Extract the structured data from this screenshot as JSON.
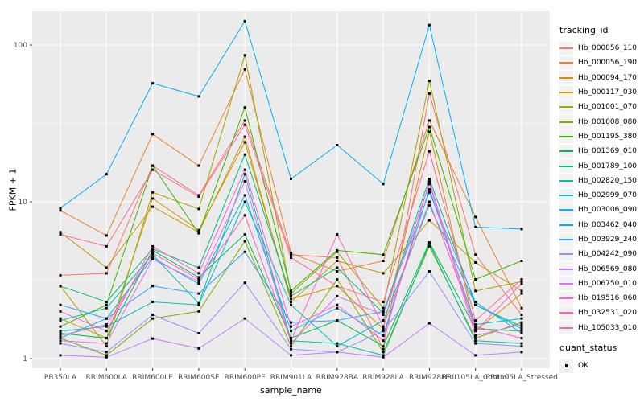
{
  "chart_data": {
    "type": "line",
    "title": "",
    "xlabel": "sample_name",
    "ylabel": "FPKM + 1",
    "y_scale": "log10",
    "ylim": [
      1,
      200
    ],
    "y_ticks": [
      1,
      10,
      100
    ],
    "y_tick_labels": [
      "1",
      "10",
      "100"
    ],
    "y_minor_ticks": [
      3.1623,
      31.623
    ],
    "grid": true,
    "panel_bg": "#EBEBEB",
    "grid_color": "#FFFFFF",
    "tick_label_color": "#4D4D4D",
    "point_marker": "black-square",
    "categories": [
      "PB350LA",
      "RRIM600LA",
      "RRIM600LE",
      "RRIM600SE",
      "RRIM600PE",
      "RRIM901LA",
      "RRIM928BA",
      "RRIM928LA",
      "RRIM928LE",
      "RRII105LA_Control",
      "RRII105LA_Stressed"
    ],
    "legend": {
      "title": "tracking_id",
      "position": "right"
    },
    "quant_status": {
      "title": "quant_status",
      "items": [
        {
          "label": "OK",
          "marker": "black-square"
        }
      ]
    },
    "series": [
      {
        "name": "Hb_000056_110",
        "color": "#F8766D",
        "values": [
          3.4,
          3.5,
          17,
          11,
          33,
          4.6,
          4.4,
          1.15,
          49,
          4.6,
          1.9
        ]
      },
      {
        "name": "Hb_000056_190",
        "color": "#EA8331",
        "values": [
          8.8,
          6.1,
          27,
          17,
          70,
          4.7,
          3.6,
          4.2,
          33,
          8.0,
          2.1
        ]
      },
      {
        "name": "Hb_000094_170",
        "color": "#D89000",
        "values": [
          1.8,
          1.35,
          10.5,
          6.6,
          24,
          2.4,
          2.9,
          1.55,
          28,
          1.5,
          2.6
        ]
      },
      {
        "name": "Hb_000117_030",
        "color": "#C09B00",
        "values": [
          6.4,
          3.8,
          9.3,
          6.4,
          26,
          2.3,
          4.2,
          3.5,
          7.6,
          4.1,
          2.7
        ]
      },
      {
        "name": "Hb_001001_070",
        "color": "#A3A500",
        "values": [
          2.9,
          1.2,
          11.5,
          9.0,
          86,
          2.6,
          4.8,
          2.1,
          59,
          2.7,
          3.1
        ]
      },
      {
        "name": "Hb_001008_080",
        "color": "#7CAE00",
        "values": [
          1.35,
          1.05,
          1.8,
          2.0,
          5.6,
          1.2,
          3.2,
          1.1,
          5.2,
          1.35,
          1.7
        ]
      },
      {
        "name": "Hb_001195_380",
        "color": "#39B600",
        "values": [
          1.6,
          2.2,
          17,
          6.3,
          40,
          2.7,
          4.9,
          4.6,
          30,
          3.2,
          4.2
        ]
      },
      {
        "name": "Hb_001369_010",
        "color": "#00BB4E",
        "values": [
          1.45,
          1.35,
          4.9,
          3.3,
          6.2,
          1.35,
          1.75,
          1.2,
          5.5,
          1.55,
          1.5
        ]
      },
      {
        "name": "Hb_001789_100",
        "color": "#00BF7D",
        "values": [
          2.9,
          2.3,
          5.0,
          3.8,
          20,
          2.5,
          3.8,
          1.95,
          14,
          2.2,
          1.6
        ]
      },
      {
        "name": "Hb_002820_150",
        "color": "#00C1A3",
        "values": [
          1.75,
          2.1,
          4.6,
          2.25,
          15,
          1.3,
          1.25,
          1.05,
          5.4,
          1.3,
          1.25
        ]
      },
      {
        "name": "Hb_002999_070",
        "color": "#00BFC4",
        "values": [
          1.5,
          1.6,
          2.3,
          2.2,
          10,
          2.2,
          1.2,
          1.75,
          9.5,
          2.2,
          1.55
        ]
      },
      {
        "name": "Hb_003006_090",
        "color": "#00BAE0",
        "values": [
          1.35,
          1.8,
          4.4,
          3.0,
          11,
          1.5,
          2.1,
          1.4,
          12,
          1.65,
          1.8
        ]
      },
      {
        "name": "Hb_003462_040",
        "color": "#00B0F6",
        "values": [
          9.1,
          15,
          57,
          47,
          142,
          14,
          23,
          13,
          134,
          6.9,
          6.7
        ]
      },
      {
        "name": "Hb_003929_240",
        "color": "#35A2FF",
        "values": [
          2.2,
          1.8,
          2.9,
          2.6,
          4.8,
          1.7,
          1.75,
          2.0,
          11.5,
          2.3,
          1.45
        ]
      },
      {
        "name": "Hb_004242_090",
        "color": "#9590FF",
        "values": [
          1.25,
          1.1,
          1.9,
          1.45,
          3.05,
          1.15,
          1.1,
          1.5,
          3.6,
          1.25,
          1.2
        ]
      },
      {
        "name": "Hb_006569_080",
        "color": "#C77CFF",
        "values": [
          1.05,
          1.02,
          1.34,
          1.16,
          1.8,
          1.05,
          1.1,
          1.02,
          1.68,
          1.05,
          1.1
        ]
      },
      {
        "name": "Hb_006750_010",
        "color": "#E76BF3",
        "values": [
          1.3,
          1.25,
          4.3,
          3.1,
          13.5,
          1.25,
          2.5,
          1.9,
          13,
          1.4,
          1.65
        ]
      },
      {
        "name": "Hb_019516_060",
        "color": "#FA62DB",
        "values": [
          2.0,
          1.5,
          5.2,
          3.5,
          16,
          1.6,
          2.2,
          1.3,
          13.5,
          1.5,
          3.0
        ]
      },
      {
        "name": "Hb_032531_020",
        "color": "#FF62BC",
        "values": [
          1.4,
          1.65,
          4.7,
          3.2,
          8.2,
          1.3,
          6.2,
          1.6,
          10,
          1.6,
          1.35
        ]
      },
      {
        "name": "Hb_105033_010",
        "color": "#FF6A98",
        "values": [
          6.2,
          5.2,
          16,
          10.8,
          31,
          4.4,
          2.9,
          2.3,
          21,
          1.75,
          3.2
        ]
      }
    ]
  }
}
